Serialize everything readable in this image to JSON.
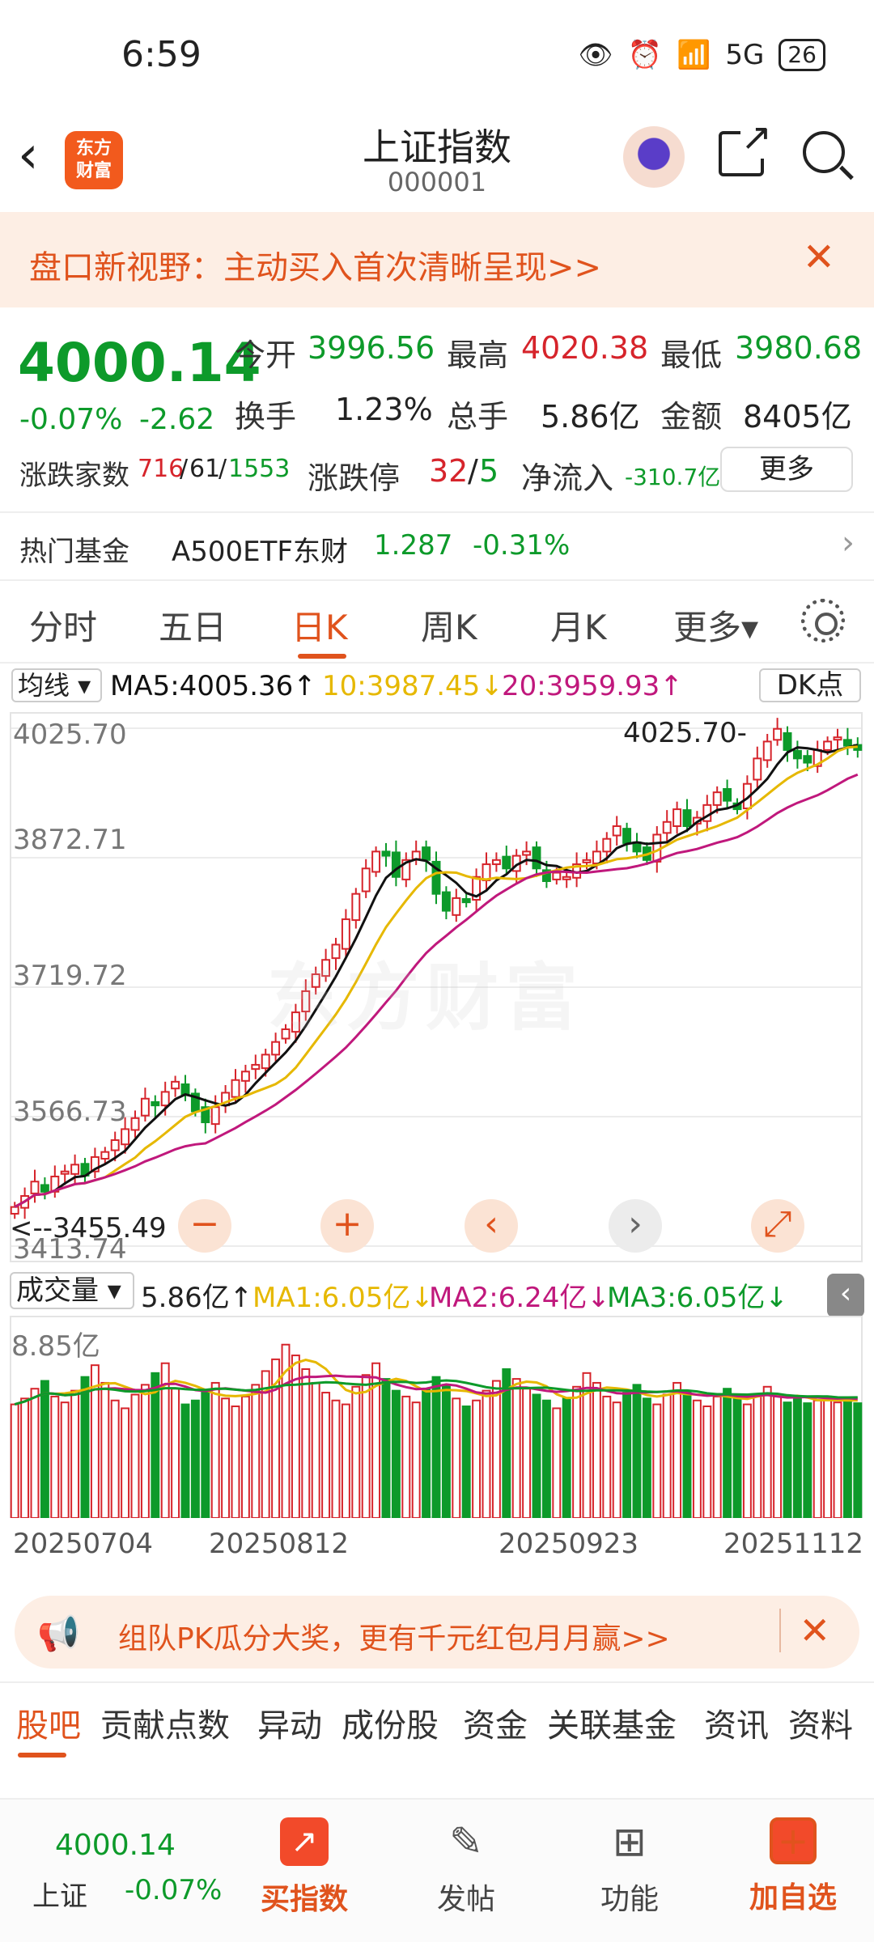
{
  "status": {
    "time": "6:59",
    "network": "5G",
    "battery": "26"
  },
  "nav": {
    "back": "‹",
    "logo": "东方\n财富",
    "title": "上证指数",
    "code": "000001"
  },
  "banner": {
    "text": "盘口新视野：主动买入首次清晰呈现>>",
    "close": "✕"
  },
  "quote": {
    "price": "4000.14",
    "change_pct": "-0.07%",
    "change": "-2.62",
    "open_label": "今开",
    "open": "3996.56",
    "high_label": "最高",
    "high": "4020.38",
    "low_label": "最低",
    "low": "3980.68",
    "turnover_label": "换手",
    "turnover": "1.23%",
    "volume_label": "总手",
    "volume": "5.86亿",
    "amount_label": "金额",
    "amount": "8405亿",
    "breadth_label": "涨跌家数",
    "breadth_up": "716",
    "breadth_sep1": "/",
    "breadth_flat": "61",
    "breadth_sep2": "/",
    "breadth_down": "1553",
    "limit_label": "涨跌停",
    "limit_up": "32",
    "limit_sep": "/",
    "limit_down": "5",
    "netflow_label": "净流入",
    "netflow": "-310.7亿",
    "more_button": "更多"
  },
  "fund": {
    "label": "热门基金",
    "name": "A500ETF东财",
    "price": "1.287",
    "pct": "-0.31%",
    "arrow": "›"
  },
  "tabs": [
    "分时",
    "五日",
    "日K",
    "周K",
    "月K",
    "更多▾"
  ],
  "ma": {
    "selector": "均线 ▾",
    "ma5": "MA5:4005.36↑",
    "ma10": "10:3987.45↓",
    "ma20": "20:3959.93↑",
    "dk": "DK点"
  },
  "chart_axis": {
    "y1": "4025.70",
    "y2": "3872.71",
    "y3": "3719.72",
    "y4": "3566.73",
    "y5": "3413.74",
    "max_label": "4025.70-",
    "min_label": "<--3455.49"
  },
  "watermark": "东方财富",
  "controls": {
    "minus": "−",
    "plus": "+",
    "left": "‹",
    "right": "›",
    "expand": "⤢"
  },
  "volume": {
    "selector": "成交量 ▾",
    "current": "5.86亿↑",
    "ma1": "MA1:6.05亿↓",
    "ma2": "MA2:6.24亿↓",
    "ma3": "MA3:6.05亿↓",
    "max": "8.85亿",
    "side": "‹"
  },
  "dates": [
    "20250704",
    "20250812",
    "20250923",
    "20251112"
  ],
  "promo": {
    "icon": "📢",
    "text": "组队PK瓜分大奖，更有千元红包月月赢>>",
    "close": "✕"
  },
  "bottom_tabs": [
    "股吧",
    "贡献点数",
    "异动",
    "成份股",
    "资金",
    "关联基金",
    "资讯",
    "资料"
  ],
  "footer": {
    "price": "4000.14",
    "name": "上证",
    "pct": "-0.07%",
    "items": [
      {
        "label": "买指数",
        "icon": "chart-up-icon"
      },
      {
        "label": "发帖",
        "icon": "edit-icon"
      },
      {
        "label": "功能",
        "icon": "grid-icon"
      },
      {
        "label": "加自选",
        "icon": "add-icon"
      }
    ]
  },
  "colors": {
    "up": "#d6242b",
    "down": "#0d9a2a",
    "accent": "#e0531d",
    "ma5": "#111111",
    "ma10": "#e6b800",
    "ma20": "#c0187c"
  },
  "chart_data": {
    "type": "candlestick",
    "y_axis_ticks": [
      4025.7,
      3872.71,
      3719.72,
      3566.73,
      3413.74
    ],
    "ylim": [
      3413.74,
      4025.7
    ],
    "max_point": 4025.7,
    "min_point": 3455.49,
    "x_tick_labels": [
      "20250704",
      "20250812",
      "20250923",
      "20251112"
    ],
    "close_series_approx": [
      3460,
      3473,
      3490,
      3478,
      3496,
      3502,
      3510,
      3497,
      3519,
      3525,
      3539,
      3552,
      3565,
      3588,
      3580,
      3596,
      3608,
      3593,
      3573,
      3560,
      3578,
      3595,
      3610,
      3620,
      3628,
      3640,
      3655,
      3670,
      3690,
      3715,
      3735,
      3752,
      3770,
      3800,
      3830,
      3860,
      3880,
      3875,
      3850,
      3870,
      3880,
      3870,
      3830,
      3810,
      3825,
      3820,
      3850,
      3865,
      3870,
      3860,
      3875,
      3880,
      3860,
      3845,
      3855,
      3850,
      3865,
      3870,
      3880,
      3895,
      3910,
      3890,
      3880,
      3870,
      3900,
      3915,
      3930,
      3910,
      3920,
      3935,
      3950,
      3940,
      3930,
      3960,
      3990,
      4010,
      4025,
      4000,
      3990,
      3985,
      4000,
      4010,
      4015,
      4005,
      4000
    ],
    "volume_series_approx": [
      5.8,
      6.1,
      6.6,
      7.0,
      6.2,
      5.9,
      6.5,
      7.2,
      7.8,
      6.9,
      6.0,
      5.6,
      6.3,
      6.8,
      7.4,
      7.9,
      6.6,
      5.8,
      6.0,
      6.4,
      6.9,
      6.1,
      5.7,
      6.2,
      6.8,
      7.5,
      8.1,
      8.85,
      8.3,
      7.6,
      6.9,
      6.4,
      6.0,
      5.8,
      6.7,
      7.3,
      7.9,
      7.1,
      6.5,
      6.2,
      5.9,
      6.6,
      7.2,
      6.8,
      6.1,
      5.7,
      6.0,
      6.5,
      7.0,
      7.6,
      7.1,
      6.6,
      6.3,
      6.0,
      5.6,
      6.1,
      6.7,
      7.4,
      6.9,
      6.2,
      5.9,
      6.4,
      6.8,
      6.1,
      5.8,
      6.3,
      6.9,
      6.5,
      6.0,
      5.7,
      6.2,
      6.6,
      6.1,
      5.8,
      6.3,
      6.7,
      6.2,
      5.9,
      6.1,
      5.86,
      6.0,
      6.2,
      5.9,
      6.05,
      5.86
    ],
    "volume_unit": "亿"
  }
}
